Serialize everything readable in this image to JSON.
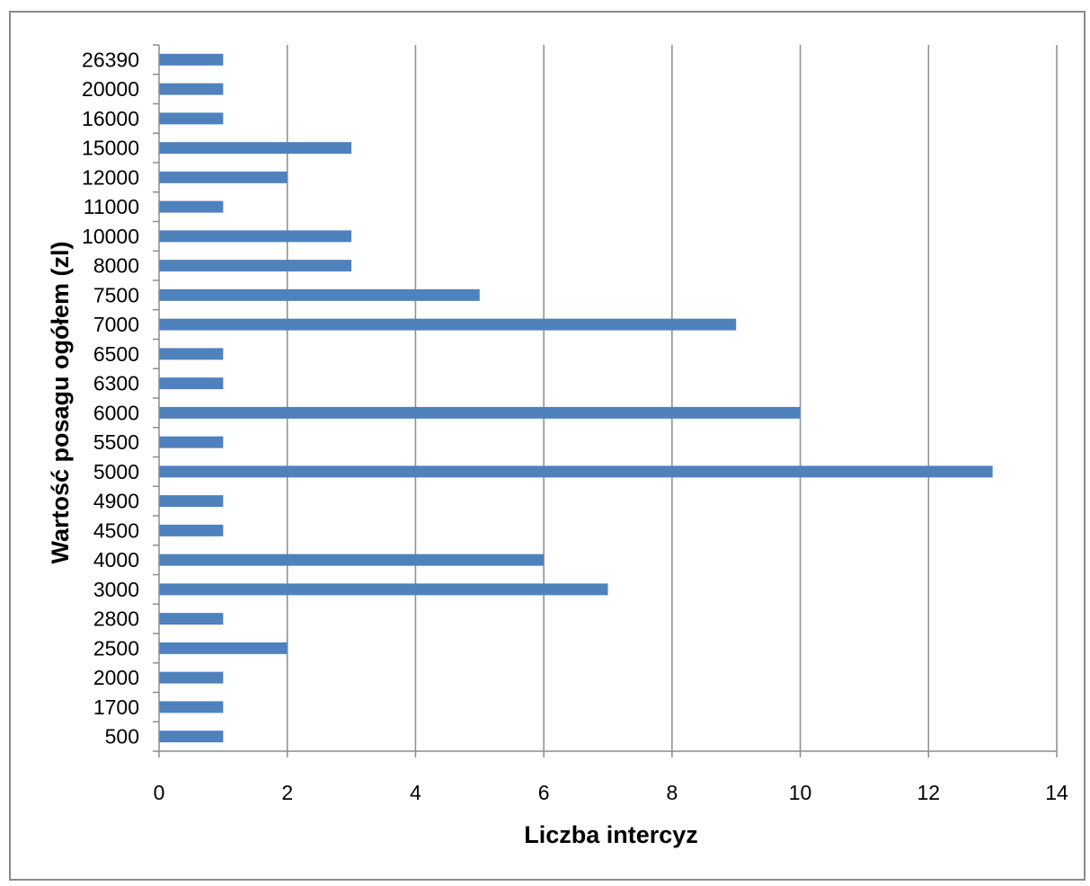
{
  "chart_data": {
    "type": "bar",
    "orientation": "horizontal",
    "title": "",
    "xlabel": "Liczba intercyz",
    "ylabel": "Wartość posagu ogółem (zl)",
    "categories": [
      "500",
      "1700",
      "2000",
      "2500",
      "2800",
      "3000",
      "4000",
      "4500",
      "4900",
      "5000",
      "5500",
      "6000",
      "6300",
      "6500",
      "7000",
      "7500",
      "8000",
      "10000",
      "11000",
      "12000",
      "15000",
      "16000",
      "20000",
      "26390"
    ],
    "values": [
      1,
      1,
      1,
      2,
      1,
      7,
      6,
      1,
      1,
      13,
      1,
      10,
      1,
      1,
      9,
      5,
      3,
      3,
      1,
      2,
      3,
      1,
      1,
      1
    ],
    "xlim": [
      0,
      14
    ],
    "xticks": [
      "0",
      "2",
      "4",
      "6",
      "8",
      "10",
      "12",
      "14"
    ],
    "grid": "vertical",
    "legend": "none",
    "colors": {
      "bar": "#4f81bd",
      "grid": "#8c8c8c",
      "axis": "#8c8c8c"
    }
  }
}
